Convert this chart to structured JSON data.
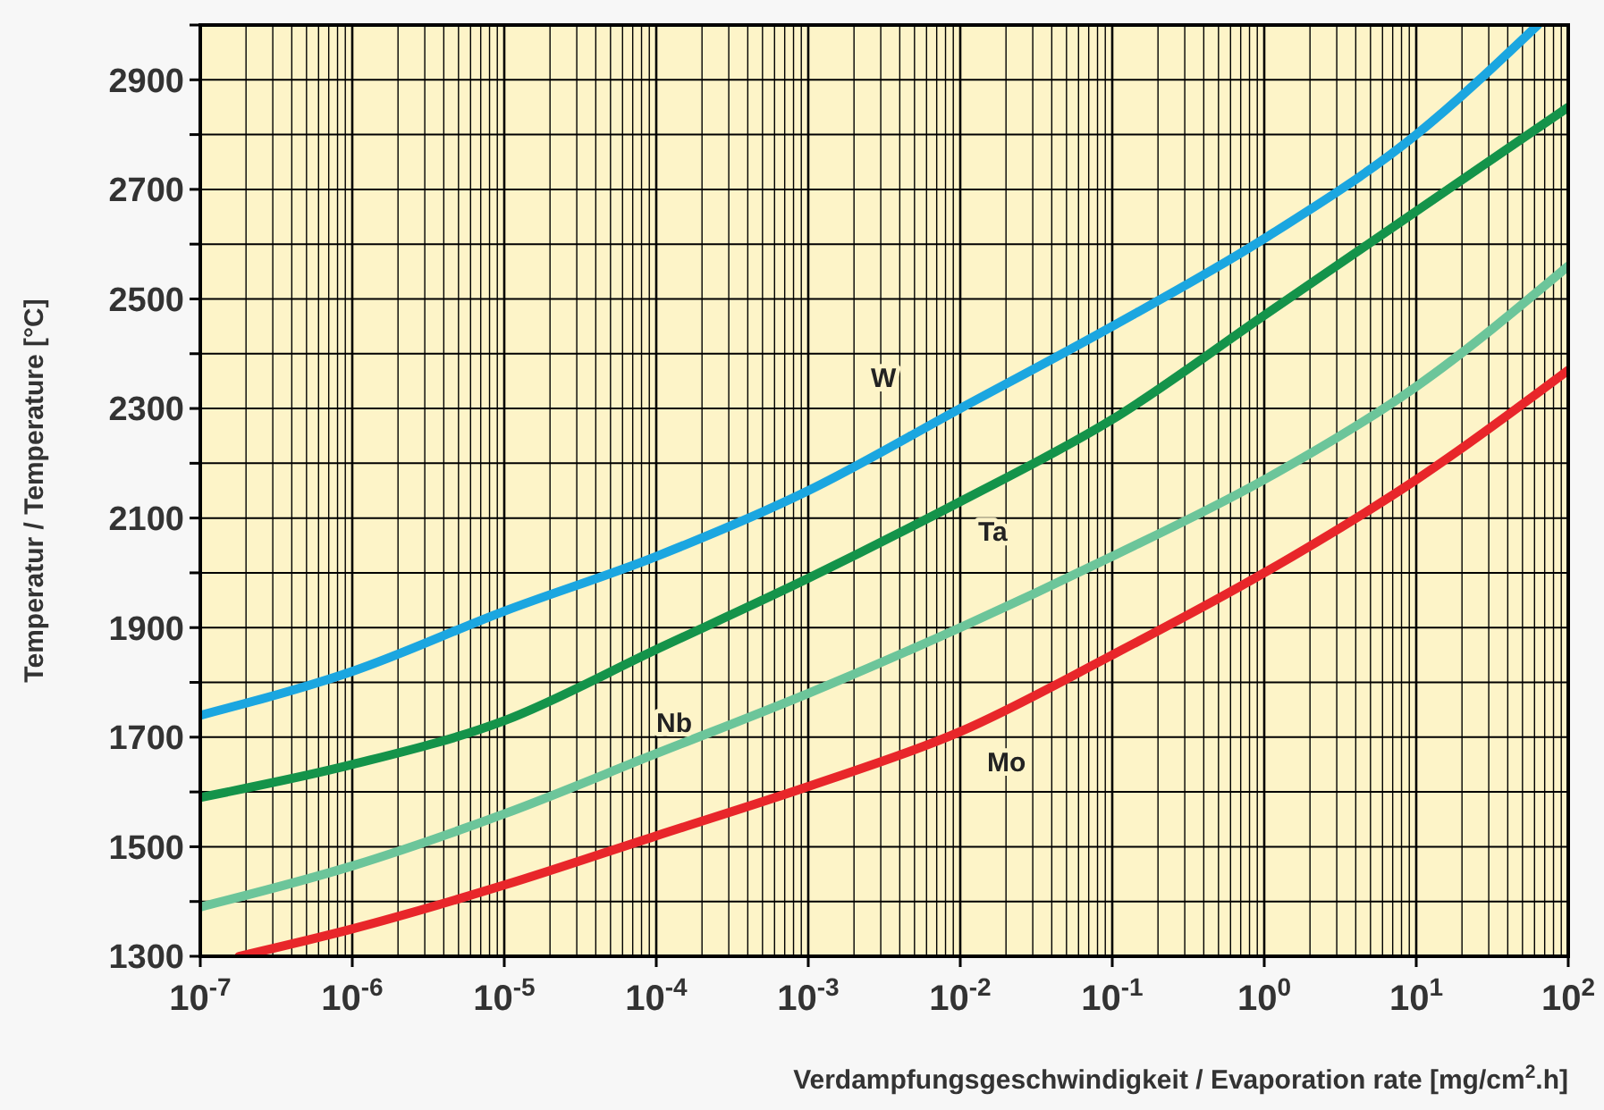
{
  "chart_data": {
    "type": "line",
    "xlabel": "Verdampfungsgeschwindigkeit / Evaporation rate [mg/cm$^{2}$.h]",
    "ylabel": "Temperatur / Temperature [°C]",
    "log": "x",
    "grid": true,
    "line_style": "solid",
    "marker": "none",
    "xlim": [
      1e-07,
      100
    ],
    "ylim": [
      1300,
      3000
    ],
    "xticks": [
      {
        "value": 1e-07,
        "label": "10$^{-7}$"
      },
      {
        "value": 1e-06,
        "label": "10$^{-6}$"
      },
      {
        "value": 1e-05,
        "label": "10$^{-5}$"
      },
      {
        "value": 0.0001,
        "label": "10$^{-4}$"
      },
      {
        "value": 0.001,
        "label": "10$^{-3}$"
      },
      {
        "value": 0.01,
        "label": "10$^{-2}$"
      },
      {
        "value": 0.1,
        "label": "10$^{-1}$"
      },
      {
        "value": 1,
        "label": "10$^{0}$"
      },
      {
        "value": 10,
        "label": "10$^{1}$"
      },
      {
        "value": 100,
        "label": "10$^{2}$"
      }
    ],
    "yticks": [
      1300,
      {
        "value": 1400,
        "label": null
      },
      1500,
      {
        "value": 1600,
        "label": null
      },
      1700,
      {
        "value": 1800,
        "label": null
      },
      1900,
      {
        "value": 2000,
        "label": null
      },
      2100,
      {
        "value": 2200,
        "label": null
      },
      2300,
      {
        "value": 2400,
        "label": null
      },
      2500,
      {
        "value": 2600,
        "label": null
      },
      2700,
      {
        "value": 2800,
        "label": null
      },
      2900,
      {
        "value": 3000,
        "label": null
      }
    ],
    "series": [
      {
        "name": "W",
        "color": "#1ba6e0",
        "x": [
          1e-07,
          1e-06,
          1e-05,
          0.0001,
          0.001,
          0.01,
          0.1,
          1,
          10,
          63
        ],
        "values": [
          1740,
          1820,
          1930,
          2030,
          2150,
          2300,
          2450,
          2610,
          2800,
          3000
        ]
      },
      {
        "name": "Ta",
        "color": "#14934a",
        "x": [
          1e-07,
          1e-06,
          1e-05,
          0.0001,
          0.001,
          0.01,
          0.1,
          1,
          10,
          100
        ],
        "values": [
          1590,
          1650,
          1730,
          1860,
          1990,
          2130,
          2280,
          2470,
          2660,
          2850
        ]
      },
      {
        "name": "Nb",
        "color": "#6cc59a",
        "x": [
          1e-07,
          1e-06,
          1e-05,
          0.0001,
          0.001,
          0.01,
          0.1,
          1,
          10,
          100
        ],
        "values": [
          1390,
          1465,
          1560,
          1670,
          1780,
          1900,
          2030,
          2170,
          2340,
          2560
        ]
      },
      {
        "name": "Mo",
        "color": "#e8262a",
        "x": [
          1.8e-07,
          1e-06,
          1e-05,
          0.0001,
          0.001,
          0.01,
          0.1,
          1,
          10,
          100
        ],
        "values": [
          1300,
          1350,
          1430,
          1520,
          1610,
          1710,
          1850,
          2000,
          2170,
          2370
        ]
      }
    ]
  }
}
